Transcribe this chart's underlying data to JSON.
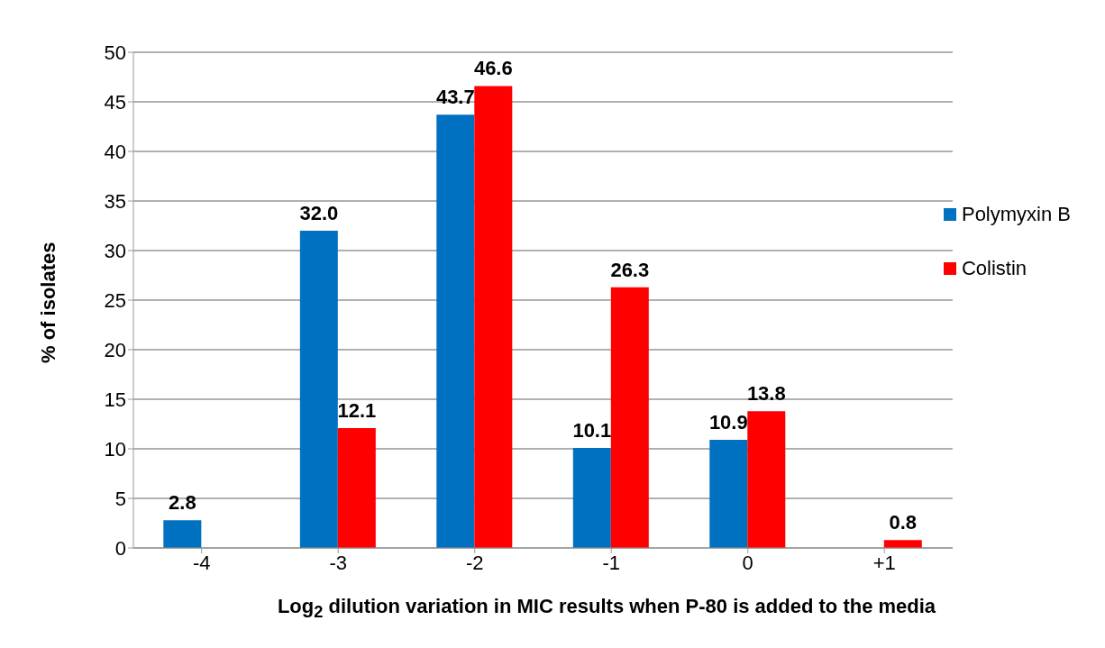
{
  "chart_data": {
    "type": "bar",
    "xlabel": "Log$_{2}$ dilution variation in MIC results when P-80 is added to the media",
    "ylabel": "% of isolates",
    "categories": [
      "-4",
      "-3",
      "-2",
      "-1",
      "0",
      "+1"
    ],
    "series": [
      {
        "name": "Polymyxin B",
        "color": "#0070c0",
        "values": [
          2.8,
          32.0,
          43.7,
          10.1,
          10.9,
          null
        ],
        "value_labels": [
          "2.8",
          "32.0",
          "43.7",
          "10.1",
          "10.9",
          null
        ]
      },
      {
        "name": "Colistin",
        "color": "#ff0000",
        "values": [
          null,
          12.1,
          46.6,
          26.3,
          13.8,
          0.8
        ],
        "value_labels": [
          null,
          "12.1",
          "46.6",
          "26.3",
          "13.8",
          "0.8"
        ]
      }
    ],
    "ylim": [
      0,
      50
    ],
    "yticks": [
      0,
      5,
      10,
      15,
      20,
      25,
      30,
      35,
      40,
      45,
      50
    ],
    "grid": "y",
    "legend": "right"
  }
}
